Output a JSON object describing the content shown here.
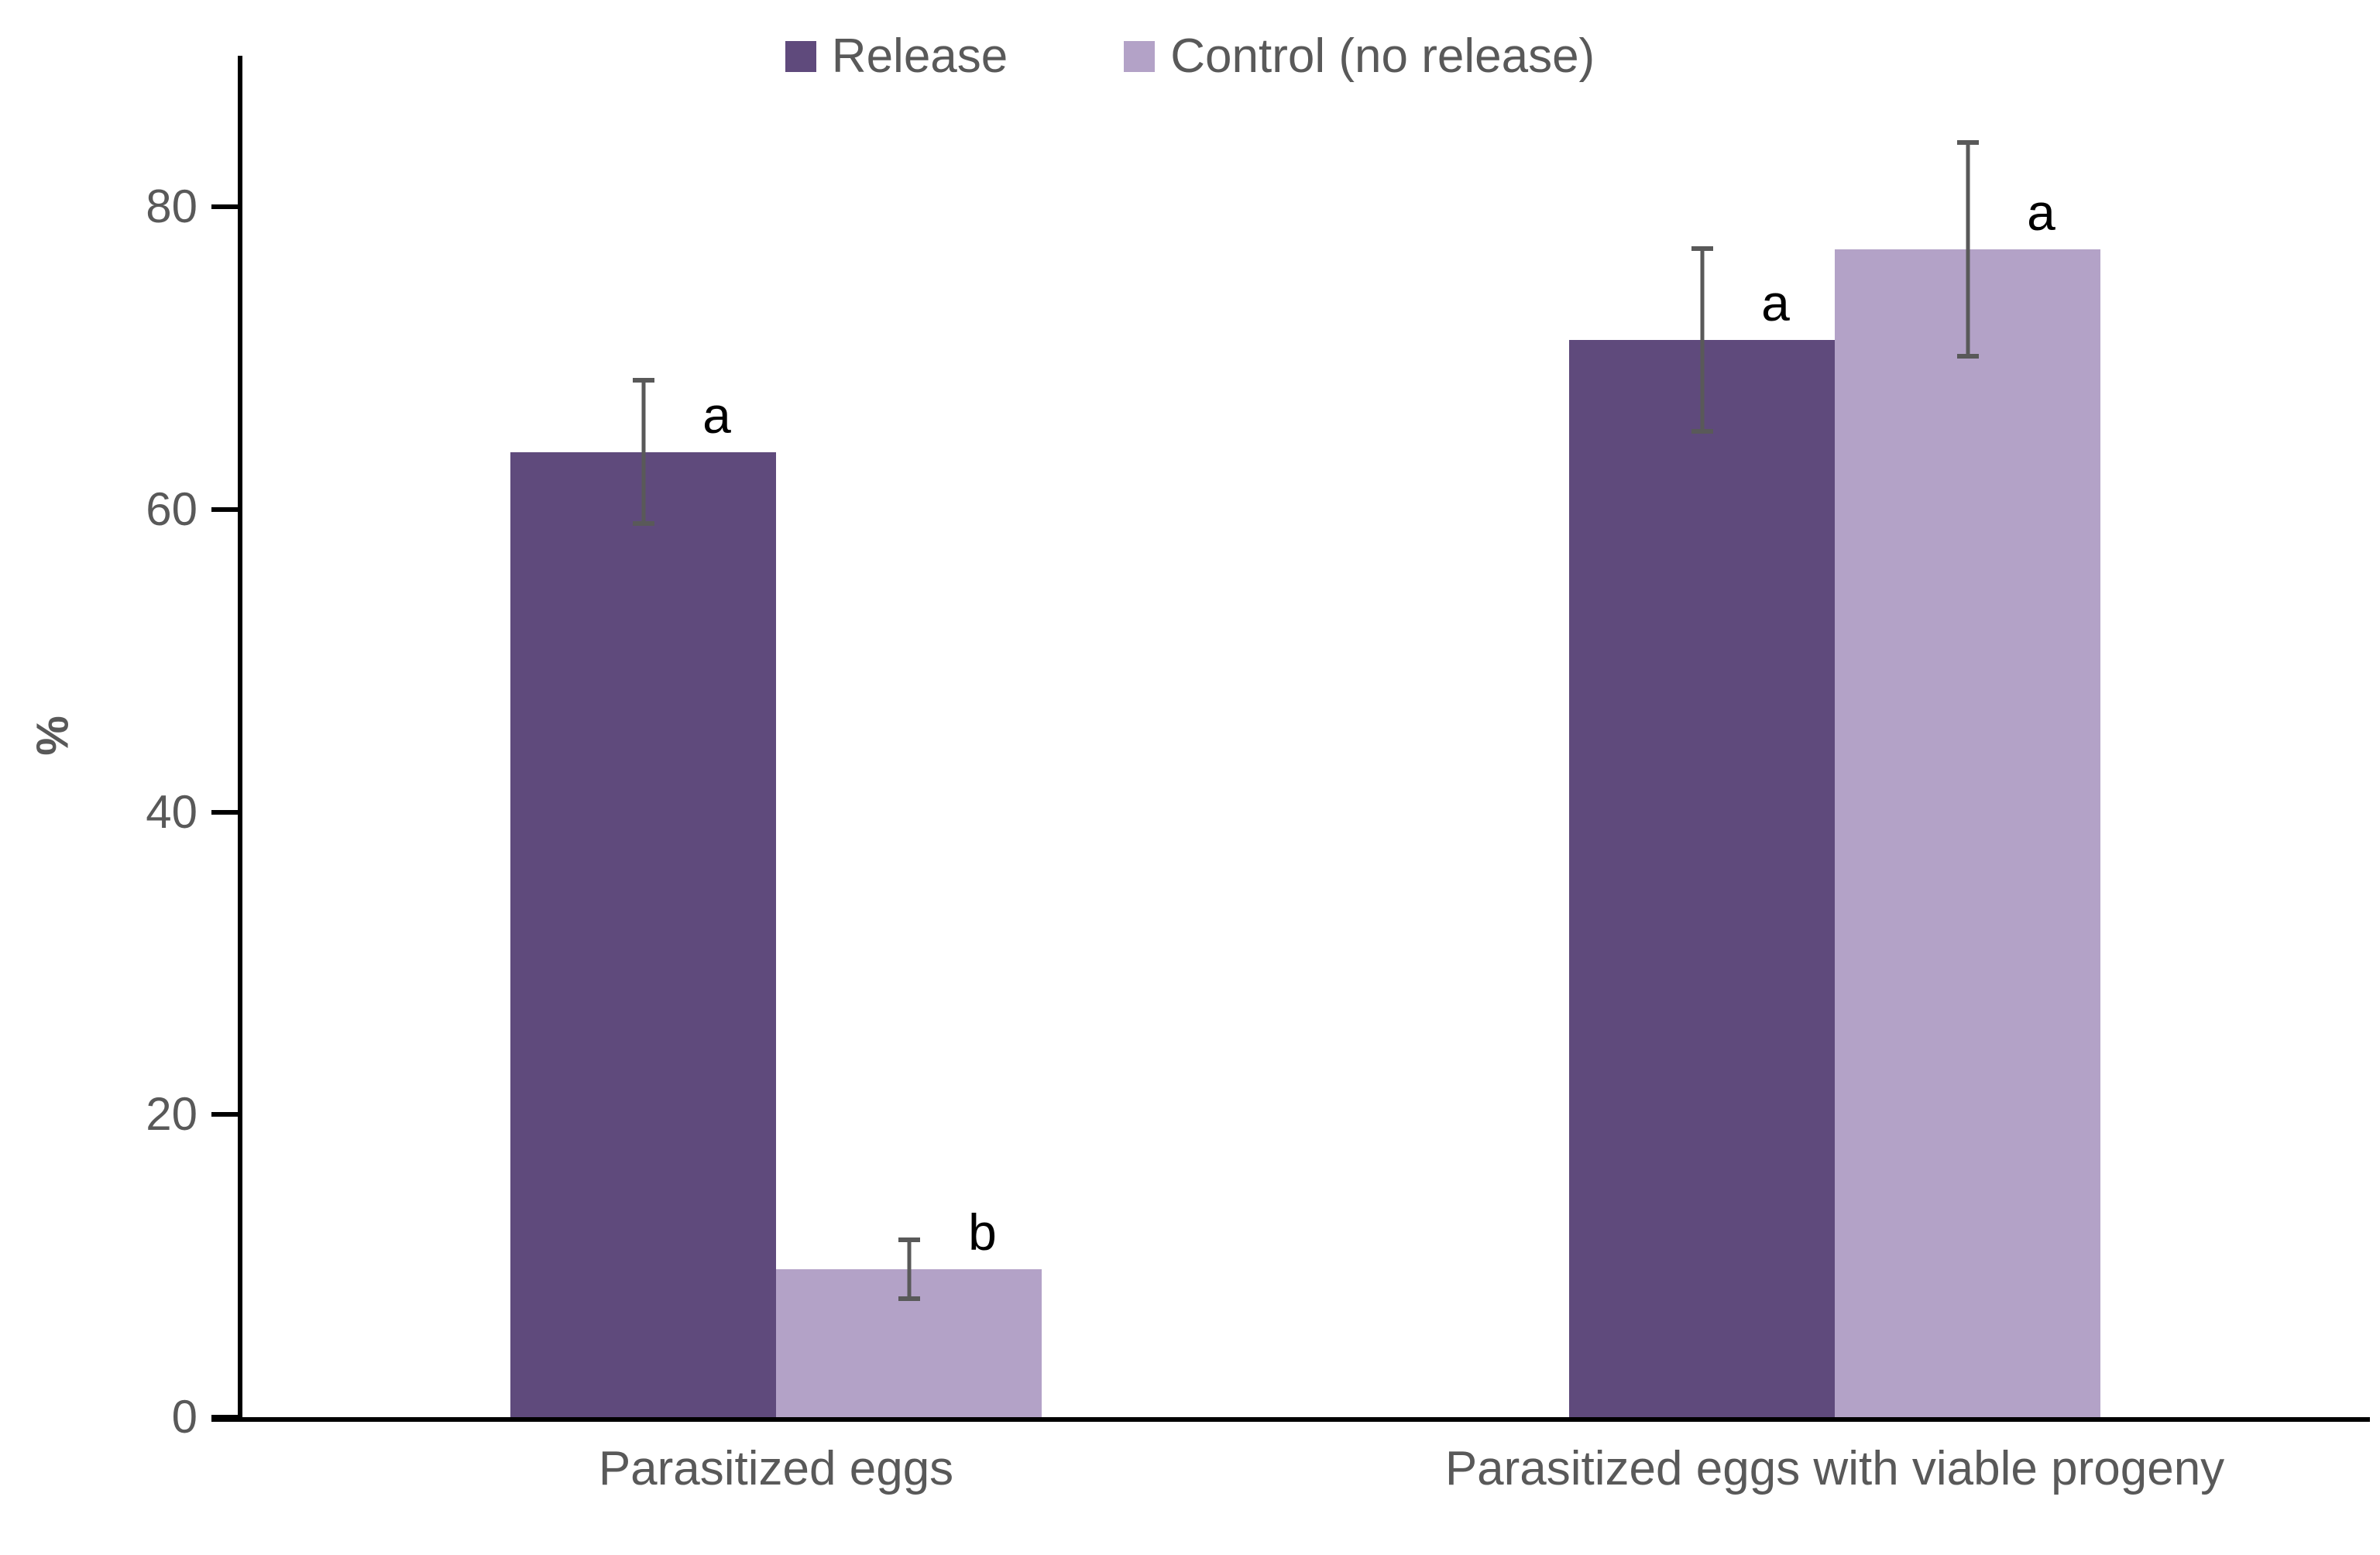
{
  "legend": {
    "items": [
      {
        "label": "Release",
        "color": "#5F4A7C"
      },
      {
        "label": "Control (no release)",
        "color": "#B3A2C7"
      }
    ]
  },
  "y_axis": {
    "title": "%",
    "tick_labels": [
      "0",
      "20",
      "40",
      "60",
      "80"
    ]
  },
  "colors": {
    "axis": "#000000",
    "error_bar": "#595959",
    "tick_label": "#595959",
    "category_label": "#595959",
    "sig_letter": "#000000"
  },
  "chart_data": {
    "type": "bar",
    "title": "",
    "xlabel": "",
    "ylabel": "%",
    "ylim": [
      0,
      90
    ],
    "yticks": [
      0,
      20,
      40,
      60,
      80
    ],
    "grid": false,
    "legend_position": "top",
    "categories": [
      "Parasitized eggs",
      "Parasitized eggs with viable progeny"
    ],
    "series": [
      {
        "name": "Release",
        "color": "#5F4A7C",
        "values": [
          63.8,
          71.2
        ],
        "errors": [
          4.9,
          6.2
        ],
        "sig_letters": [
          "a",
          "a"
        ]
      },
      {
        "name": "Control (no release)",
        "color": "#B3A2C7",
        "values": [
          9.8,
          77.2
        ],
        "errors": [
          2.1,
          7.2
        ],
        "sig_letters": [
          "b",
          "a"
        ]
      }
    ]
  }
}
